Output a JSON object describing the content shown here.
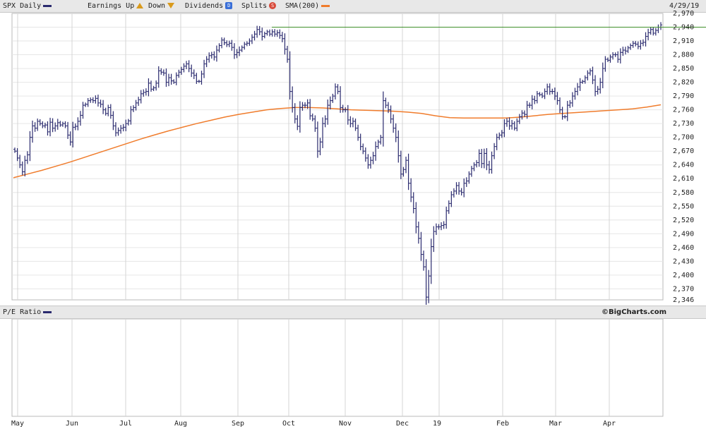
{
  "header": {
    "symbol_label": "SPX Daily",
    "earnings_label": "Earnings Up",
    "down_label": "Down",
    "dividends_label": "Dividends",
    "dividends_badge": "D",
    "splits_label": "Splits",
    "splits_badge": "S",
    "sma_label": "SMA(200)",
    "date_label": "4/29/19",
    "colors": {
      "price": "#2a2a6e",
      "sma": "#f07c2c",
      "earnings": "#d99a1c",
      "dividends": "#3a6fd8",
      "splits": "#d84a3a"
    }
  },
  "pe_panel": {
    "label": "P/E Ratio",
    "credit": "©BigCharts.com"
  },
  "chart_data": {
    "type": "ohlc",
    "title": "SPX Daily",
    "ylim": [
      2346,
      2970
    ],
    "yticks": [
      "2,970",
      "2,940",
      "2,910",
      "2,880",
      "2,850",
      "2,820",
      "2,790",
      "2,760",
      "2,730",
      "2,700",
      "2,670",
      "2,640",
      "2,610",
      "2,580",
      "2,550",
      "2,520",
      "2,490",
      "2,460",
      "2,430",
      "2,400",
      "2,370",
      "2,346"
    ],
    "month_labels": [
      "May",
      "Jun",
      "Jul",
      "Aug",
      "Sep",
      "Oct",
      "Nov",
      "Dec",
      "19",
      "Feb",
      "Mar",
      "Apr"
    ],
    "resistance_line": 2940,
    "grid": true,
    "price_series": {
      "name": "SPX Daily",
      "close": [
        2670,
        2655,
        2640,
        2625,
        2650,
        2662,
        2700,
        2725,
        2720,
        2735,
        2730,
        2725,
        2727,
        2712,
        2733,
        2720,
        2725,
        2732,
        2727,
        2730,
        2725,
        2705,
        2690,
        2722,
        2724,
        2735,
        2748,
        2770,
        2772,
        2780,
        2782,
        2780,
        2785,
        2775,
        2772,
        2760,
        2752,
        2765,
        2748,
        2725,
        2710,
        2715,
        2720,
        2722,
        2730,
        2736,
        2760,
        2765,
        2775,
        2782,
        2795,
        2798,
        2800,
        2818,
        2805,
        2808,
        2818,
        2845,
        2842,
        2840,
        2820,
        2830,
        2823,
        2820,
        2835,
        2842,
        2848,
        2855,
        2860,
        2850,
        2840,
        2835,
        2822,
        2822,
        2838,
        2860,
        2870,
        2878,
        2880,
        2875,
        2890,
        2900,
        2912,
        2906,
        2902,
        2905,
        2896,
        2880,
        2885,
        2890,
        2896,
        2903,
        2905,
        2910,
        2918,
        2925,
        2935,
        2930,
        2920,
        2926,
        2930,
        2925,
        2930,
        2925,
        2928,
        2922,
        2915,
        2892,
        2870,
        2800,
        2765,
        2740,
        2724,
        2765,
        2770,
        2770,
        2775,
        2747,
        2740,
        2720,
        2670,
        2690,
        2730,
        2740,
        2770,
        2780,
        2790,
        2810,
        2800,
        2765,
        2760,
        2760,
        2738,
        2730,
        2735,
        2720,
        2700,
        2680,
        2670,
        2655,
        2640,
        2650,
        2660,
        2680,
        2690,
        2700,
        2780,
        2770,
        2760,
        2740,
        2720,
        2700,
        2660,
        2620,
        2630,
        2650,
        2600,
        2570,
        2545,
        2505,
        2480,
        2445,
        2418,
        2352,
        2398,
        2462,
        2495,
        2505,
        2505,
        2508,
        2510,
        2540,
        2556,
        2575,
        2583,
        2595,
        2583,
        2580,
        2600,
        2605,
        2620,
        2632,
        2640,
        2645,
        2665,
        2643,
        2665,
        2640,
        2630,
        2660,
        2680,
        2700,
        2705,
        2710,
        2730,
        2735,
        2725,
        2730,
        2720,
        2735,
        2745,
        2753,
        2750,
        2770,
        2770,
        2783,
        2780,
        2795,
        2793,
        2790,
        2800,
        2810,
        2800,
        2800,
        2790,
        2780,
        2760,
        2745,
        2745,
        2770,
        2775,
        2790,
        2800,
        2810,
        2820,
        2822,
        2830,
        2840,
        2845,
        2825,
        2800,
        2805,
        2820,
        2850,
        2870,
        2868,
        2875,
        2880,
        2880,
        2870,
        2885,
        2890,
        2888,
        2895,
        2900,
        2905,
        2903,
        2898,
        2905,
        2907,
        2920,
        2928,
        2935,
        2927,
        2933,
        2940,
        2945
      ]
    },
    "sma_series": {
      "name": "SMA(200)",
      "values": [
        2612,
        2620,
        2628,
        2637,
        2646,
        2656,
        2666,
        2676,
        2686,
        2696,
        2705,
        2714,
        2722,
        2730,
        2737,
        2744,
        2750,
        2755,
        2760,
        2763,
        2765,
        2765,
        2764,
        2762,
        2760,
        2759,
        2758,
        2757,
        2755,
        2752,
        2747,
        2743,
        2742,
        2742,
        2742,
        2742,
        2744,
        2747,
        2750,
        2752,
        2754,
        2756,
        2758,
        2760,
        2762,
        2766,
        2771
      ]
    }
  }
}
